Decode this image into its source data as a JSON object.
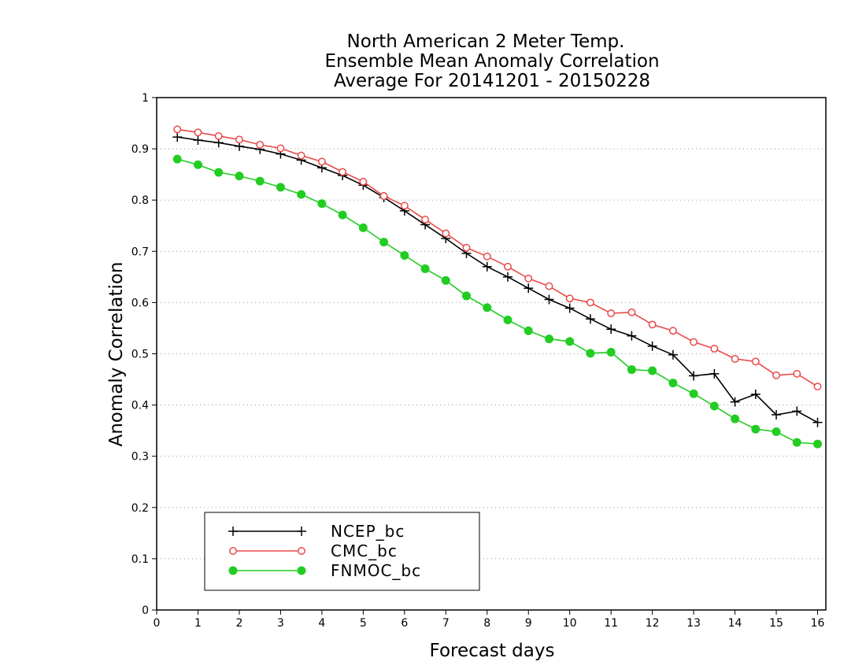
{
  "chart_data": {
    "type": "line",
    "title_lines": [
      "North American 2 Meter Temp.",
      "Ensemble Mean Anomaly Correlation",
      "Average For 20141201 - 20150228"
    ],
    "xlabel": "Forecast days",
    "ylabel": "Anomaly Correlation",
    "xlim": [
      0,
      16.2
    ],
    "ylim": [
      0,
      1
    ],
    "x_ticks": [
      "0",
      "1",
      "2",
      "3",
      "4",
      "5",
      "6",
      "7",
      "8",
      "9",
      "10",
      "11",
      "12",
      "13",
      "14",
      "15",
      "16"
    ],
    "y_ticks": [
      "0",
      "0.1",
      "0.2",
      "0.3",
      "0.4",
      "0.5",
      "0.6",
      "0.7",
      "0.8",
      "0.9",
      "1"
    ],
    "grid": "horizontal dotted",
    "legend_position": "bottom-left",
    "x": [
      0.5,
      1,
      1.5,
      2,
      2.5,
      3,
      3.5,
      4,
      4.5,
      5,
      5.5,
      6,
      6.5,
      7,
      7.5,
      8,
      8.5,
      9,
      9.5,
      10,
      10.5,
      11,
      11.5,
      12,
      12.5,
      13,
      13.5,
      14,
      14.5,
      15,
      15.5,
      16
    ],
    "series": [
      {
        "name": "NCEP_bc",
        "color": "#000000",
        "marker": "plus",
        "values": [
          0.923,
          0.917,
          0.912,
          0.905,
          0.899,
          0.89,
          0.878,
          0.863,
          0.848,
          0.829,
          0.805,
          0.779,
          0.752,
          0.725,
          0.696,
          0.67,
          0.65,
          0.628,
          0.606,
          0.589,
          0.568,
          0.548,
          0.535,
          0.515,
          0.498,
          0.457,
          0.461,
          0.406,
          0.421,
          0.381,
          0.388,
          0.366
        ]
      },
      {
        "name": "CMC_bc",
        "color": "#e84a4a",
        "marker": "open-circle",
        "values": [
          0.938,
          0.932,
          0.925,
          0.918,
          0.908,
          0.901,
          0.887,
          0.875,
          0.855,
          0.836,
          0.808,
          0.789,
          0.762,
          0.735,
          0.707,
          0.69,
          0.67,
          0.647,
          0.632,
          0.608,
          0.6,
          0.579,
          0.581,
          0.557,
          0.545,
          0.523,
          0.51,
          0.49,
          0.485,
          0.458,
          0.461,
          0.436
        ]
      },
      {
        "name": "FNMOC_bc",
        "color": "#22cc22",
        "marker": "filled-circle",
        "values": [
          0.88,
          0.869,
          0.854,
          0.847,
          0.837,
          0.825,
          0.811,
          0.793,
          0.771,
          0.746,
          0.718,
          0.692,
          0.666,
          0.643,
          0.613,
          0.59,
          0.566,
          0.545,
          0.529,
          0.524,
          0.501,
          0.503,
          0.469,
          0.467,
          0.443,
          0.422,
          0.398,
          0.373,
          0.353,
          0.348,
          0.327,
          0.324
        ]
      }
    ]
  }
}
